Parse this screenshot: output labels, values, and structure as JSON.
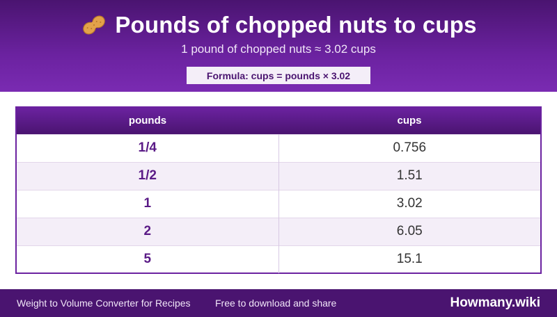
{
  "header": {
    "title": "Pounds of chopped nuts to cups",
    "subtitle": "1 pound of chopped nuts ≈ 3.02 cups",
    "formula": "Formula: cups = pounds × 3.02",
    "icon": "peanut-icon"
  },
  "table": {
    "columns": [
      "pounds",
      "cups"
    ],
    "rows": [
      {
        "pounds": "1/4",
        "cups": "0.756"
      },
      {
        "pounds": "1/2",
        "cups": "1.51"
      },
      {
        "pounds": "1",
        "cups": "3.02"
      },
      {
        "pounds": "2",
        "cups": "6.05"
      },
      {
        "pounds": "5",
        "cups": "15.1"
      }
    ]
  },
  "footer": {
    "left": "Weight to Volume Converter for Recipes",
    "middle": "Free to download and share",
    "brand": "Howmany.wiki"
  },
  "colors": {
    "brand_purple": "#6b22a0",
    "dark_purple": "#4a1470",
    "row_alt": "#f4eef8"
  }
}
